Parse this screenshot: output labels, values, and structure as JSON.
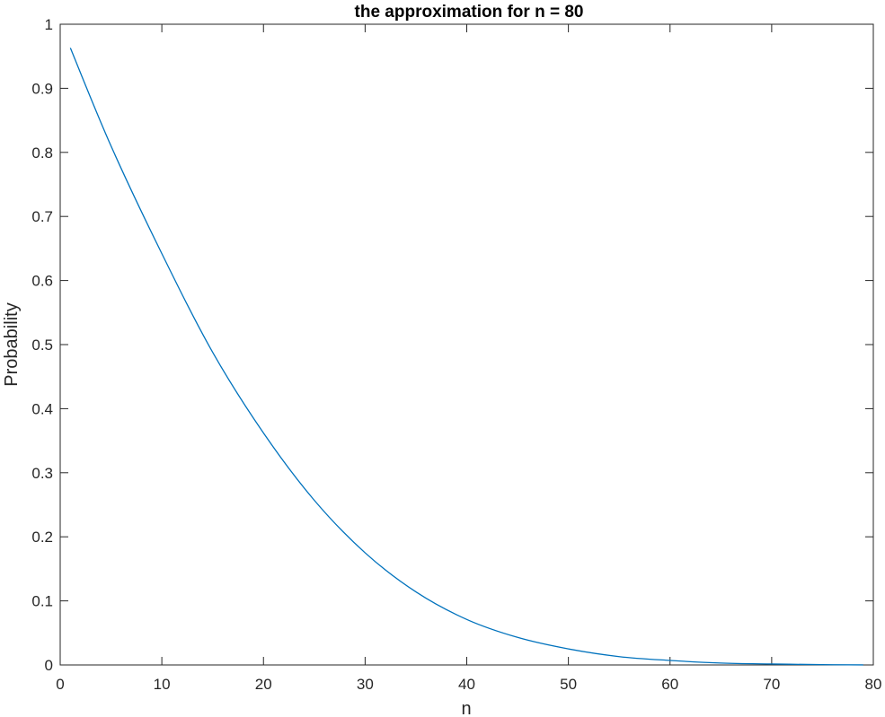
{
  "chart_data": {
    "type": "line",
    "title": "the approximation for n = 80",
    "xlabel": "n",
    "ylabel": "Probability",
    "xlim": [
      0,
      80
    ],
    "ylim": [
      0,
      1
    ],
    "xticks": [
      "0",
      "10",
      "20",
      "30",
      "40",
      "50",
      "60",
      "70",
      "80"
    ],
    "yticks": [
      "0",
      "0.1",
      "0.2",
      "0.3",
      "0.4",
      "0.5",
      "0.6",
      "0.7",
      "0.8",
      "0.9",
      "1"
    ],
    "grid": false,
    "line_color": "#0072BD",
    "series": [
      {
        "x": [
          1,
          5,
          10,
          15,
          20,
          25,
          30,
          35,
          40,
          45,
          50,
          55,
          60,
          65,
          70,
          75,
          79
        ],
        "y": [
          0.963,
          0.81,
          0.642,
          0.488,
          0.362,
          0.257,
          0.175,
          0.114,
          0.071,
          0.043,
          0.025,
          0.013,
          0.007,
          0.003,
          0.0015,
          0.0005,
          0.0001
        ]
      }
    ]
  }
}
